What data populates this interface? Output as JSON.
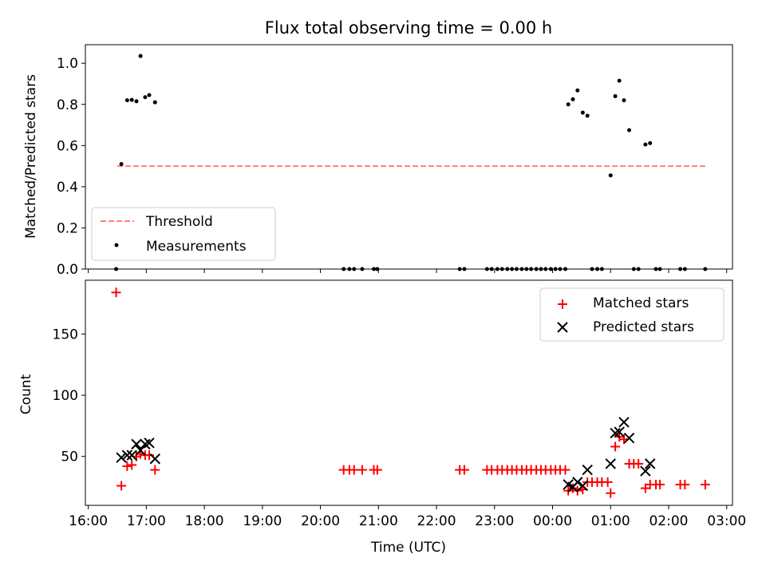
{
  "chart_data": [
    {
      "type": "scatter",
      "title": "Flux total observing time = 0.00 h",
      "ylabel": "Matched/Predicted stars",
      "xlabel": "",
      "x_unit": "hours since 16:00 UTC",
      "xlim": [
        -0.05,
        11.1
      ],
      "ylim": [
        0,
        1.09
      ],
      "yticks": [
        0.0,
        0.2,
        0.4,
        0.6,
        0.8,
        1.0
      ],
      "legend_position": "lower left",
      "threshold": {
        "name": "Threshold",
        "value": 0.5,
        "x_range": [
          0.5,
          10.63
        ],
        "color": "#ff7f7f",
        "style": "dashed"
      },
      "series": [
        {
          "name": "Measurements",
          "color": "#000000",
          "marker": "dot",
          "points": [
            [
              0.48,
              0.0
            ],
            [
              0.57,
              0.51
            ],
            [
              0.67,
              0.82
            ],
            [
              0.75,
              0.822
            ],
            [
              0.83,
              0.815
            ],
            [
              0.9,
              1.035
            ],
            [
              0.98,
              0.835
            ],
            [
              1.05,
              0.845
            ],
            [
              1.15,
              0.81
            ],
            [
              4.4,
              0.0
            ],
            [
              4.5,
              0.0
            ],
            [
              4.58,
              0.0
            ],
            [
              4.72,
              0.0
            ],
            [
              4.92,
              0.0
            ],
            [
              4.98,
              0.0
            ],
            [
              6.4,
              0.0
            ],
            [
              6.48,
              0.0
            ],
            [
              6.87,
              0.0
            ],
            [
              6.95,
              0.0
            ],
            [
              7.05,
              0.0
            ],
            [
              7.13,
              0.0
            ],
            [
              7.22,
              0.0
            ],
            [
              7.3,
              0.0
            ],
            [
              7.38,
              0.0
            ],
            [
              7.47,
              0.0
            ],
            [
              7.55,
              0.0
            ],
            [
              7.63,
              0.0
            ],
            [
              7.72,
              0.0
            ],
            [
              7.8,
              0.0
            ],
            [
              7.88,
              0.0
            ],
            [
              7.97,
              0.0
            ],
            [
              8.05,
              0.0
            ],
            [
              8.13,
              0.0
            ],
            [
              8.22,
              0.0
            ],
            [
              8.27,
              0.8
            ],
            [
              8.35,
              0.825
            ],
            [
              8.43,
              0.868
            ],
            [
              8.52,
              0.76
            ],
            [
              8.6,
              0.745
            ],
            [
              8.68,
              0.0
            ],
            [
              8.77,
              0.0
            ],
            [
              8.85,
              0.0
            ],
            [
              9.0,
              0.455
            ],
            [
              9.08,
              0.84
            ],
            [
              9.15,
              0.915
            ],
            [
              9.23,
              0.82
            ],
            [
              9.32,
              0.675
            ],
            [
              9.4,
              0.0
            ],
            [
              9.48,
              0.0
            ],
            [
              9.6,
              0.605
            ],
            [
              9.68,
              0.612
            ],
            [
              9.78,
              0.0
            ],
            [
              9.85,
              0.0
            ],
            [
              10.2,
              0.0
            ],
            [
              10.28,
              0.0
            ],
            [
              10.63,
              0.0
            ]
          ]
        }
      ]
    },
    {
      "type": "scatter",
      "title": "",
      "ylabel": "Count",
      "xlabel": "Time (UTC)",
      "x_unit": "hours since 16:00 UTC",
      "xlim": [
        -0.05,
        11.1
      ],
      "ylim": [
        10,
        194
      ],
      "yticks": [
        50,
        100,
        150
      ],
      "xticks": [
        0,
        1,
        2,
        3,
        4,
        5,
        6,
        7,
        8,
        9,
        10,
        11
      ],
      "xtick_labels": [
        "16:00",
        "17:00",
        "18:00",
        "19:00",
        "20:00",
        "21:00",
        "22:00",
        "23:00",
        "00:00",
        "01:00",
        "02:00",
        "03:00"
      ],
      "legend_position": "upper right",
      "series": [
        {
          "name": "Matched stars",
          "color": "#ff0000",
          "marker": "plus",
          "points": [
            [
              0.48,
              184
            ],
            [
              0.57,
              26
            ],
            [
              0.67,
              42
            ],
            [
              0.75,
              43
            ],
            [
              0.83,
              50
            ],
            [
              0.9,
              52
            ],
            [
              0.98,
              51
            ],
            [
              1.05,
              51
            ],
            [
              1.15,
              39
            ],
            [
              4.4,
              39
            ],
            [
              4.5,
              39
            ],
            [
              4.58,
              39
            ],
            [
              4.72,
              39
            ],
            [
              4.92,
              39
            ],
            [
              4.98,
              39
            ],
            [
              6.4,
              39
            ],
            [
              6.48,
              39
            ],
            [
              6.87,
              39
            ],
            [
              6.95,
              39
            ],
            [
              7.05,
              39
            ],
            [
              7.13,
              39
            ],
            [
              7.22,
              39
            ],
            [
              7.3,
              39
            ],
            [
              7.38,
              39
            ],
            [
              7.47,
              39
            ],
            [
              7.55,
              39
            ],
            [
              7.63,
              39
            ],
            [
              7.72,
              39
            ],
            [
              7.8,
              39
            ],
            [
              7.88,
              39
            ],
            [
              7.97,
              39
            ],
            [
              8.05,
              39
            ],
            [
              8.13,
              39
            ],
            [
              8.22,
              39
            ],
            [
              8.27,
              22
            ],
            [
              8.35,
              24
            ],
            [
              8.43,
              22
            ],
            [
              8.52,
              23
            ],
            [
              8.6,
              29
            ],
            [
              8.68,
              29
            ],
            [
              8.77,
              29
            ],
            [
              8.85,
              29
            ],
            [
              8.95,
              29
            ],
            [
              9.0,
              20
            ],
            [
              9.08,
              58
            ],
            [
              9.15,
              66
            ],
            [
              9.23,
              64
            ],
            [
              9.32,
              44
            ],
            [
              9.4,
              44
            ],
            [
              9.48,
              44
            ],
            [
              9.6,
              24
            ],
            [
              9.68,
              27
            ],
            [
              9.78,
              27
            ],
            [
              9.85,
              27
            ],
            [
              10.2,
              27
            ],
            [
              10.28,
              27
            ],
            [
              10.63,
              27
            ]
          ]
        },
        {
          "name": "Predicted stars",
          "color": "#000000",
          "marker": "x",
          "points": [
            [
              0.57,
              49
            ],
            [
              0.67,
              51
            ],
            [
              0.75,
              51
            ],
            [
              0.83,
              60
            ],
            [
              0.9,
              55
            ],
            [
              0.98,
              60
            ],
            [
              1.05,
              61
            ],
            [
              1.15,
              48
            ],
            [
              8.27,
              27
            ],
            [
              8.35,
              25
            ],
            [
              8.43,
              29
            ],
            [
              8.52,
              26
            ],
            [
              8.6,
              39
            ],
            [
              9.0,
              44
            ],
            [
              9.08,
              69
            ],
            [
              9.15,
              70
            ],
            [
              9.23,
              78
            ],
            [
              9.32,
              65
            ],
            [
              9.6,
              38
            ],
            [
              9.68,
              44
            ]
          ]
        }
      ]
    }
  ]
}
